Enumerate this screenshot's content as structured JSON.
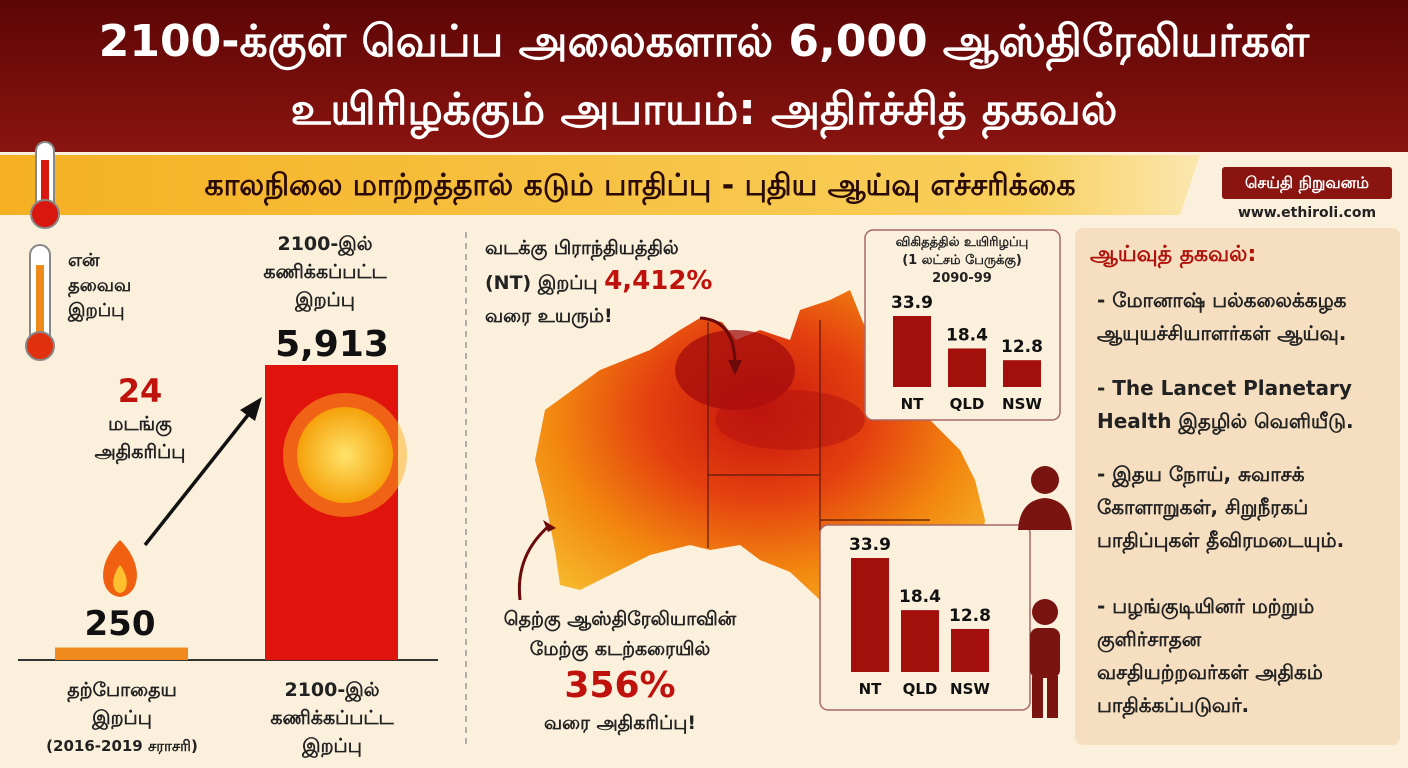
{
  "header": {
    "title_lines": [
      "2100-க்குள் வெப்ப அலைகளால் 6,000 ஆஸ்திரேலியர்கள்",
      "உயிரிழக்கும் அபாயம்: அதிர்ச்சித் தகவல்"
    ],
    "subtitle": "காலநிலை மாற்றத்தால் கடும் பாதிப்பு - புதிய ஆய்வு எச்சரிக்கை",
    "brand": "செய்தி நிறுவனம்",
    "website": "www.ethiroli.com"
  },
  "comparison": {
    "legend_lines": [
      "என்",
      "தவைவ",
      "இறப்பு"
    ],
    "top_label_lines": [
      "2100-இல்",
      "கணிக்கப்பட்ட",
      "இறப்பு"
    ],
    "multiplier": 24,
    "multiplier_lines": [
      "மடங்கு",
      "அதிகரிப்பு"
    ],
    "values": [
      250,
      5913
    ],
    "value_labels": [
      "250",
      "5,913"
    ],
    "colors": [
      "#f08a1c",
      "#e0140c"
    ],
    "category_lines": [
      [
        "தற்போதைய",
        "இறப்பு",
        "(2016-2019 சராசரி)"
      ],
      [
        "2100-இல்",
        "கணிக்கப்பட்ட",
        "இறப்பு"
      ]
    ]
  },
  "map": {
    "north_callout": {
      "lines": [
        "வடக்கு பிராந்தியத்தில்",
        "(NT) இறப்பு"
      ],
      "value": 4412,
      "value_label": "4,412%",
      "tail": "வரை உயரும்!"
    },
    "west_callout": {
      "lines": [
        "தெற்கு ஆஸ்திரேலியாவின்",
        "மேற்கு கடற்கரையில்"
      ],
      "value": 356,
      "value_label": "356%",
      "tail": "வரை அதிகரிப்பு!"
    }
  },
  "rate_charts": [
    {
      "title_lines": [
        "விகிதத்தில் உயிரிழப்பு",
        "(1 லட்சம் பேருக்கு)",
        "2090-99"
      ],
      "categories": [
        "NT",
        "QLD",
        "NSW"
      ],
      "values": [
        33.9,
        18.4,
        12.8
      ],
      "color": "#a3100c"
    },
    {
      "categories": [
        "NT",
        "QLD",
        "NSW"
      ],
      "values": [
        33.9,
        18.4,
        12.8
      ],
      "color": "#a3100c"
    }
  ],
  "research": {
    "heading": "ஆய்வுத் தகவல்:",
    "items": [
      [
        "- மோனாஷ் பல்கலைக்கழக",
        "ஆயுயச்சியாளர்கள் ஆய்வு."
      ],
      [
        "- The Lancet Planetary",
        "Health இதழில் வெளியீடு."
      ],
      [
        "- இதய நோய், சுவாசக்",
        "கோளாறுகள், சிறுநீரகப்",
        "பாதிப்புகள் தீவிரமடையும்."
      ],
      [
        "- பழங்குடியினர் மற்றும்",
        "குளிர்சாதன",
        "வசதியற்றவர்கள் அதிகம்",
        "பாதிக்கப்படுவர்."
      ]
    ]
  }
}
